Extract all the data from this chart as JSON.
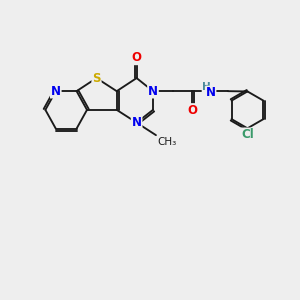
{
  "background_color": "#eeeeee",
  "bond_color": "#1a1a1a",
  "atom_colors": {
    "N": "#0000ee",
    "S": "#ccaa00",
    "O": "#ee0000",
    "Cl": "#3a9a6a",
    "H": "#4a8a9a",
    "C": "#1a1a1a"
  },
  "font_size": 8.5,
  "figure_size": [
    3.0,
    3.0
  ],
  "dpi": 100
}
